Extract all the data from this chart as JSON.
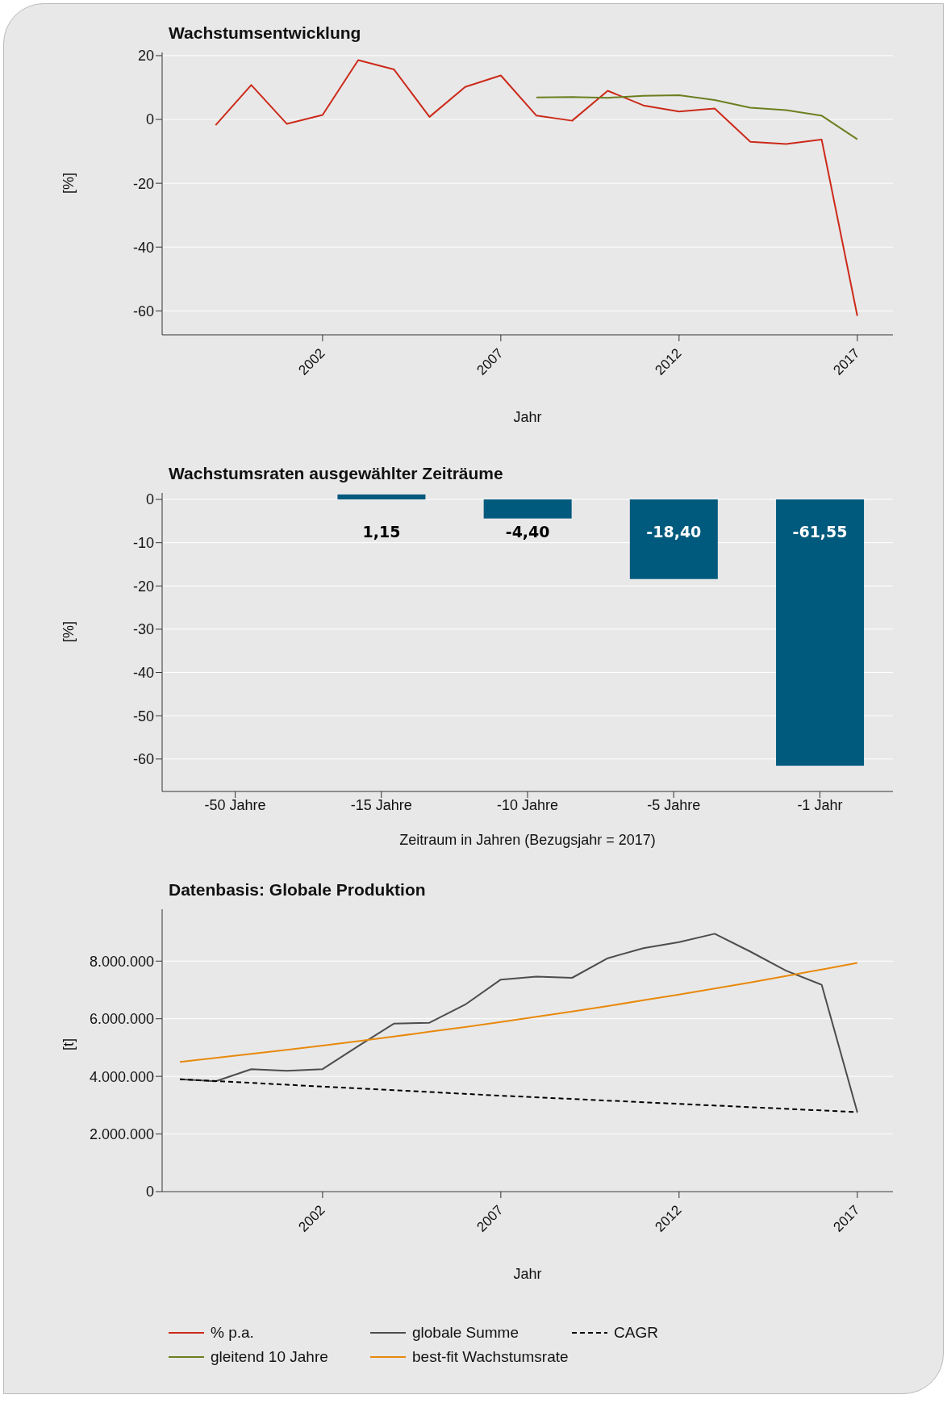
{
  "chart_data": [
    {
      "type": "line",
      "title": "Wachstumsentwicklung",
      "xlabel": "Jahr",
      "ylabel": "[%]",
      "xlim": [
        1997.5,
        2018
      ],
      "xticks": [
        2002,
        2007,
        2012,
        2017
      ],
      "ylim": [
        -67.5,
        21
      ],
      "yticks": [
        -60,
        -40,
        -20,
        0,
        20
      ],
      "grid": "y",
      "legend": "bottom",
      "marker": "none",
      "series": [
        {
          "name": "% p.a.",
          "color": "#cc2a1a",
          "x": [
            1999,
            2000,
            2001,
            2002,
            2003,
            2004,
            2005,
            2006,
            2007,
            2008,
            2009,
            2010,
            2011,
            2012,
            2013,
            2014,
            2015,
            2016,
            2017
          ],
          "values": [
            -1.8,
            10.8,
            -1.4,
            1.4,
            18.6,
            15.7,
            0.8,
            10.2,
            13.8,
            1.2,
            -0.4,
            9.0,
            4.4,
            2.5,
            3.4,
            -7.0,
            -7.7,
            -6.3,
            -61.55
          ]
        },
        {
          "name": "gleitend 10 Jahre",
          "color": "#6b7f1f",
          "x": [
            2008,
            2009,
            2010,
            2011,
            2012,
            2013,
            2014,
            2015,
            2016,
            2017
          ],
          "values": [
            6.9,
            7.0,
            6.8,
            7.4,
            7.6,
            6.1,
            3.7,
            2.9,
            1.2,
            -6.2
          ]
        }
      ]
    },
    {
      "type": "bar",
      "title": "Wachstumsraten ausgewählter Zeiträume",
      "xlabel": "Zeitraum in Jahren (Bezugsjahr = 2017)",
      "ylabel": "[%]",
      "categories": [
        "-50 Jahre",
        "-15 Jahre",
        "-10 Jahre",
        "-5 Jahre",
        "-1 Jahr"
      ],
      "ylim": [
        -67.5,
        1.5
      ],
      "yticks": [
        -60,
        -50,
        -40,
        -30,
        -20,
        -10,
        0
      ],
      "grid": "y",
      "series": [
        {
          "color": "#005a7d",
          "values": [
            null,
            1.15,
            -4.4,
            -18.4,
            -61.55
          ],
          "value_labels": [
            null,
            "1,15",
            "-4,40",
            "-18,40",
            "-61,55"
          ]
        }
      ]
    },
    {
      "type": "line",
      "title": "Datenbasis: Globale Produktion",
      "xlabel": "Jahr",
      "ylabel": "[t]",
      "xlim": [
        1997.5,
        2018
      ],
      "xticks": [
        2002,
        2007,
        2012,
        2017
      ],
      "ylim": [
        0,
        9800000
      ],
      "yticks": [
        {
          "value": 0,
          "label": "0"
        },
        {
          "value": 2000000,
          "label": "2.000.000"
        },
        {
          "value": 4000000,
          "label": "4.000.000"
        },
        {
          "value": 6000000,
          "label": "6.000.000"
        },
        {
          "value": 8000000,
          "label": "8.000.000"
        }
      ],
      "grid": "y",
      "legend": "bottom",
      "marker": "none",
      "series": [
        {
          "name": "globale Summe",
          "color": "#4d4d4d",
          "x": [
            1998,
            1999,
            2000,
            2001,
            2002,
            2003,
            2004,
            2005,
            2006,
            2007,
            2008,
            2009,
            2010,
            2011,
            2012,
            2013,
            2014,
            2015,
            2016,
            2017
          ],
          "values": [
            3900000,
            3830000,
            4250000,
            4190000,
            4250000,
            5050000,
            5830000,
            5860000,
            6490000,
            7360000,
            7460000,
            7420000,
            8100000,
            8450000,
            8660000,
            8950000,
            8330000,
            7670000,
            7180000,
            2760000
          ]
        },
        {
          "name": "best-fit Wachstumsrate",
          "color": "#e8890c",
          "x": [
            1998,
            1999,
            2000,
            2001,
            2002,
            2003,
            2004,
            2005,
            2006,
            2007,
            2008,
            2009,
            2010,
            2011,
            2012,
            2013,
            2014,
            2015,
            2016,
            2017
          ],
          "values": [
            4500000,
            4640000,
            4780000,
            4920000,
            5070000,
            5220000,
            5380000,
            5550000,
            5710000,
            5890000,
            6070000,
            6250000,
            6440000,
            6640000,
            6840000,
            7050000,
            7260000,
            7480000,
            7710000,
            7940000
          ]
        },
        {
          "name": "CAGR",
          "color": "#000000",
          "line_style": "dashed",
          "x": [
            1998,
            2007,
            2017
          ],
          "values": [
            3900000,
            3330000,
            2760000
          ]
        }
      ]
    }
  ]
}
